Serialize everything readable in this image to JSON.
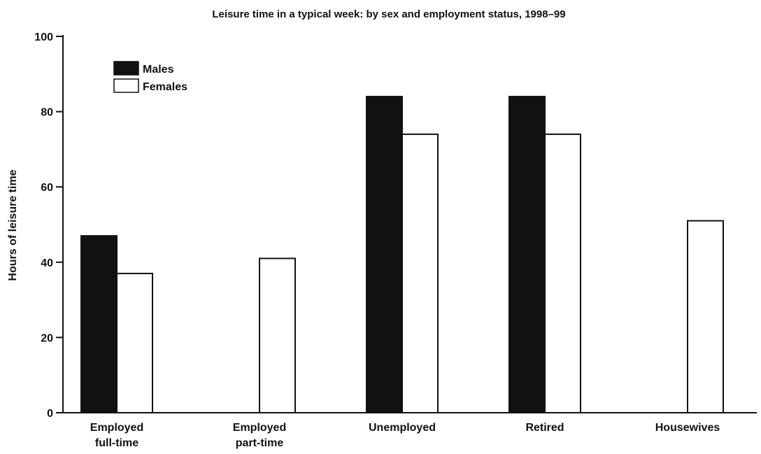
{
  "chart_data": {
    "type": "bar",
    "title": "Leisure time in a typical week: by sex and employment status, 1998–99",
    "xlabel": "",
    "ylabel": "Hours of leisure time",
    "ylim": [
      0,
      100
    ],
    "yticks": [
      0,
      20,
      40,
      60,
      80,
      100
    ],
    "grid": false,
    "legend_position": "top-left",
    "categories": [
      [
        "Employed",
        "full-time"
      ],
      [
        "Employed",
        "part-time"
      ],
      [
        "Unemployed"
      ],
      [
        "Retired"
      ],
      [
        "Housewives"
      ]
    ],
    "series": [
      {
        "name": "Males",
        "color": "#111111",
        "values": [
          47,
          null,
          84,
          84,
          null
        ]
      },
      {
        "name": "Females",
        "color": "#ffffff",
        "values": [
          37,
          41,
          74,
          74,
          51
        ]
      }
    ]
  }
}
